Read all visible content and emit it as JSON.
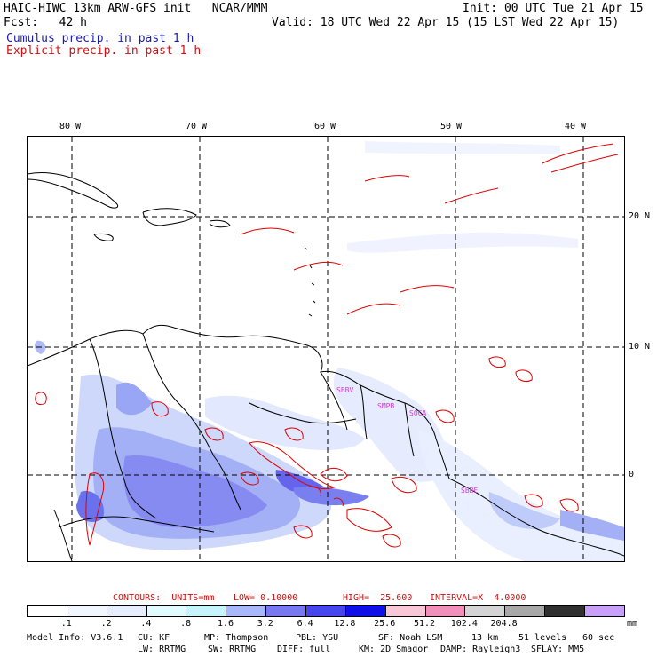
{
  "header": {
    "title": "HAIC-HIWC 13km ARW-GFS init   NCAR/MMM",
    "init": "Init: 00 UTC Tue 21 Apr 15",
    "fcst": "Fcst:   42 h",
    "valid": "Valid: 18 UTC Wed 22 Apr 15 (15 LST Wed 22 Apr 15)",
    "field1": "Cumulus precip. in past 1 h",
    "field2": "Explicit precip. in past 1 h"
  },
  "map": {
    "lon_labels": [
      "80 W",
      "70 W",
      "60 W",
      "50 W",
      "40 W"
    ],
    "lat_labels": [
      "20 N",
      "10 N",
      "0"
    ],
    "place_labels": [
      "SBBV",
      "SMPB",
      "SOCA",
      "SBBE"
    ]
  },
  "contours": {
    "text_contours": "CONTOURS:  UNITS=mm",
    "text_low": "LOW= 0.10000",
    "text_high": "HIGH=  25.600",
    "text_interval": "INTERVAL=X  4.0000"
  },
  "scale": {
    "labels": [
      ".1",
      ".2",
      ".4",
      ".8",
      "1.6",
      "3.2",
      "6.4",
      "12.8",
      "25.6",
      "51.2",
      "102.4",
      "204.8"
    ],
    "unit": "mm",
    "colors": [
      "#ffffff",
      "#f2f6ff",
      "#e6eefe",
      "#e2fbff",
      "#c6f4fc",
      "#a8b8f8",
      "#7878f0",
      "#4646ec",
      "#1010e8",
      "#f8c8d8",
      "#f090b8",
      "#d4d4d4",
      "#a8a8a8",
      "#303030",
      "#c8a0f8"
    ]
  },
  "footer": {
    "line1": [
      "Model Info: V3.6.1",
      "CU: KF",
      "MP: Thompson",
      "PBL: YSU",
      "SF: Noah LSM",
      "13 km",
      "51 levels",
      "60 sec"
    ],
    "line2": [
      "LW: RRTMG",
      "SW: RRTMG",
      "DIFF: full",
      "KM: 2D Smagor",
      "DAMP: Rayleigh3",
      "SFLAY: MM5"
    ]
  },
  "colors": {
    "cumulus_text": "#1a1ab4",
    "explicit_contour": "#e00000",
    "coastline": "#000000"
  }
}
